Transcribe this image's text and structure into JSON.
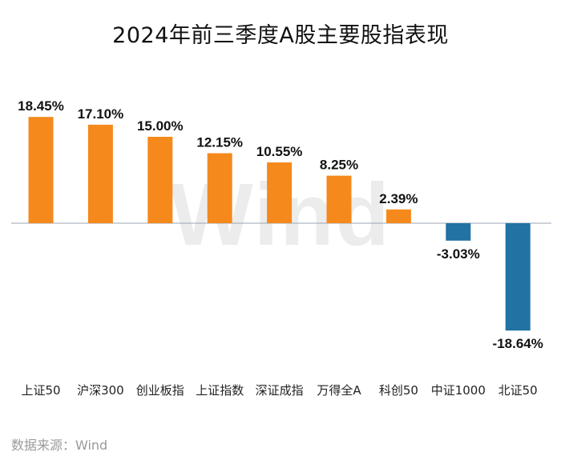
{
  "chart_data": {
    "type": "bar",
    "title": "2024年前三季度A股主要股指表现",
    "categories": [
      "上证50",
      "沪深300",
      "创业板指",
      "上证指数",
      "深证成指",
      "万得全A",
      "科创50",
      "中证1000",
      "北证50"
    ],
    "values": [
      18.45,
      17.1,
      15.0,
      12.15,
      10.55,
      8.25,
      2.39,
      -3.03,
      -18.64
    ],
    "value_labels": [
      "18.45%",
      "17.10%",
      "15.00%",
      "12.15%",
      "10.55%",
      "8.25%",
      "2.39%",
      "-3.03%",
      "-18.64%"
    ],
    "unit": "%",
    "xlabel": "",
    "ylabel": "",
    "grid": false,
    "colors": {
      "positive": "#F5891C",
      "negative": "#2272A3",
      "baseline": "#9aa6b2"
    }
  },
  "watermark": "Wind",
  "source": "数据来源：Wind"
}
